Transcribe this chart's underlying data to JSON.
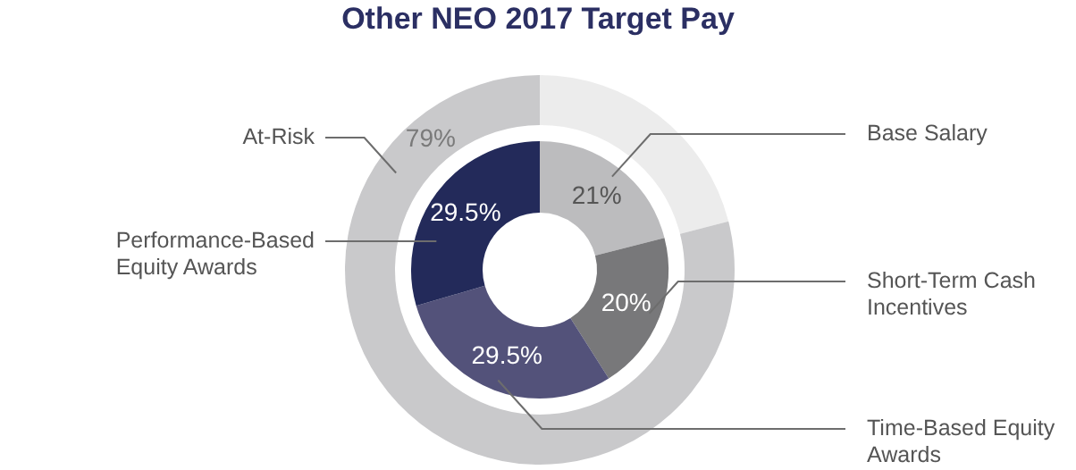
{
  "chart_data": [
    {
      "type": "donut",
      "title": "Other NEO 2017 Target Pay",
      "categories": [
        null,
        "At-Risk"
      ],
      "values": [
        21,
        79
      ],
      "colors": [
        "#ececec",
        "#c9c9cb"
      ],
      "value_labels": [
        null,
        "79%"
      ]
    },
    {
      "type": "donut",
      "categories": [
        "Base Salary",
        "Short-Term Cash Incentives",
        "Time-Based Equity Awards",
        "Performance-Based Equity Awards"
      ],
      "values": [
        21,
        20,
        29.5,
        29.5
      ],
      "colors": [
        "#bcbcbe",
        "#78787a",
        "#53527a",
        "#232a5a"
      ],
      "value_labels": [
        "21%",
        "20%",
        "29.5%",
        "29.5%"
      ]
    }
  ]
}
